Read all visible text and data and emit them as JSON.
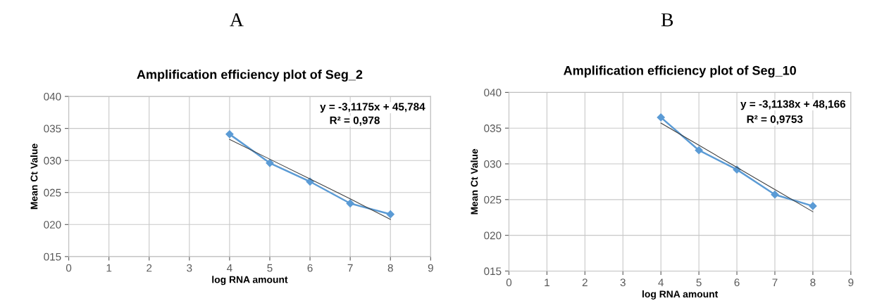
{
  "chart_data": [
    {
      "type": "line",
      "title": "Amplification efficiency plot of Seg_2",
      "xlabel": "log RNA amount",
      "ylabel": "Mean Ct Value",
      "x": [
        4,
        5,
        6,
        7,
        8
      ],
      "series": [
        {
          "color": "#5b9bd5",
          "values": [
            34.1,
            29.6,
            26.7,
            23.3,
            21.6
          ],
          "marker": "diamond"
        },
        {
          "type": "line",
          "color": "#404040",
          "values": [
            33.3,
            30.2,
            27.1,
            24.0,
            20.8
          ],
          "marker": "none"
        }
      ],
      "xlim": [
        0,
        9
      ],
      "xticks": [
        0,
        1,
        2,
        3,
        4,
        5,
        6,
        7,
        8,
        9
      ],
      "ylim": [
        15,
        40
      ],
      "yticks": [
        {
          "value": 15,
          "label": "015"
        },
        {
          "value": 20,
          "label": "020"
        },
        {
          "value": 25,
          "label": "025"
        },
        {
          "value": 30,
          "label": "030"
        },
        {
          "value": 35,
          "label": "035"
        },
        {
          "value": 40,
          "label": "040"
        }
      ],
      "grid": true,
      "line_style": "solid",
      "annotations": [
        "A",
        "y = -3,1175x + 45,784",
        "R² = 0,978"
      ]
    },
    {
      "type": "line",
      "title": "Amplification efficiency plot of Seg_10",
      "xlabel": "log RNA amount",
      "ylabel": "Mean Ct Value",
      "x": [
        4,
        5,
        6,
        7,
        8
      ],
      "series": [
        {
          "color": "#5b9bd5",
          "values": [
            36.5,
            31.9,
            29.2,
            25.7,
            24.1
          ],
          "marker": "diamond"
        },
        {
          "type": "line",
          "color": "#404040",
          "values": [
            35.7,
            32.6,
            29.5,
            26.4,
            23.3
          ],
          "marker": "none"
        }
      ],
      "xlim": [
        0,
        9
      ],
      "xticks": [
        0,
        1,
        2,
        3,
        4,
        5,
        6,
        7,
        8,
        9
      ],
      "ylim": [
        15,
        40
      ],
      "yticks": [
        {
          "value": 15,
          "label": "015"
        },
        {
          "value": 20,
          "label": "020"
        },
        {
          "value": 25,
          "label": "025"
        },
        {
          "value": 30,
          "label": "030"
        },
        {
          "value": 35,
          "label": "035"
        },
        {
          "value": 40,
          "label": "040"
        }
      ],
      "grid": true,
      "line_style": "solid",
      "annotations": [
        "B",
        "y = -3,1138x + 48,166",
        "R² = 0,9753"
      ]
    }
  ]
}
